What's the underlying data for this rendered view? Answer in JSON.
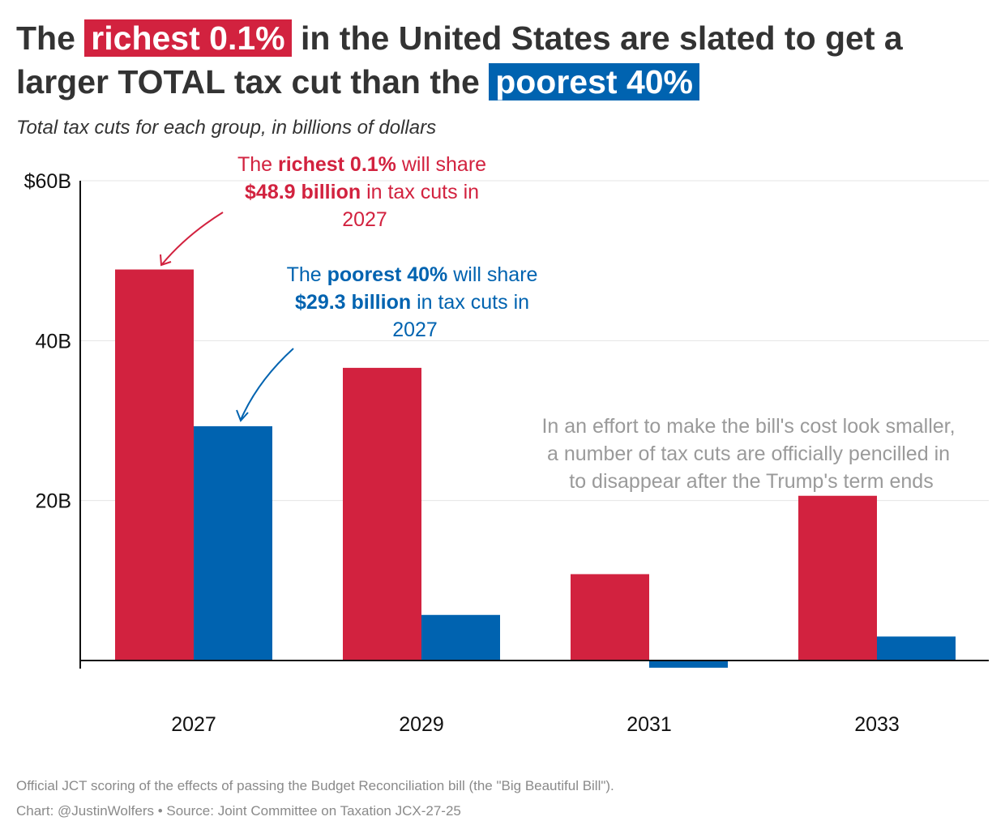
{
  "title": {
    "part1": "The ",
    "highlight_rich": "richest 0.1%",
    "part2": " in the United States are slated to get a larger TOTAL tax cut than the ",
    "highlight_poor": "poorest 40%"
  },
  "subtitle": "Total tax cuts for each group, in billions of dollars",
  "colors": {
    "rich": "#d2223f",
    "poor": "#0063b0",
    "note": "#9a9a9a"
  },
  "chart_data": {
    "type": "bar",
    "categories": [
      "2027",
      "2029",
      "2031",
      "2033"
    ],
    "series": [
      {
        "name": "Richest 0.1%",
        "values": [
          48.9,
          36.6,
          10.8,
          20.6
        ]
      },
      {
        "name": "Poorest 40%",
        "values": [
          29.3,
          5.7,
          -0.9,
          3.0
        ]
      }
    ],
    "ylim": [
      0,
      60
    ],
    "yticks": [
      {
        "value": 60,
        "label": "$60B"
      },
      {
        "value": 40,
        "label": "40B"
      },
      {
        "value": 20,
        "label": "20B"
      }
    ],
    "annotations": {
      "rich": {
        "line1_pre": "The ",
        "line1_bold": "richest 0.1%",
        "line1_post": " will share",
        "line2_bold": "$48.9 billion",
        "line2_post": " in tax cuts in",
        "line3": "2027"
      },
      "poor": {
        "line1_pre": "The ",
        "line1_bold": "poorest 40%",
        "line1_post": " will share",
        "line2_bold": "$29.3 billion",
        "line2_post": " in tax cuts in",
        "line3": "2027"
      },
      "sunset": [
        "In an effort to make the bill's cost look smaller,",
        "a number of tax cuts are officially pencilled in",
        "to disappear after the Trump's term ends"
      ]
    }
  },
  "footer": {
    "note": "Official JCT scoring of the effects of passing the Budget Reconciliation bill (the \"Big Beautiful Bill\").",
    "credit": "Chart: @JustinWolfers • Source: Joint Committee on Taxation JCX-27-25"
  }
}
